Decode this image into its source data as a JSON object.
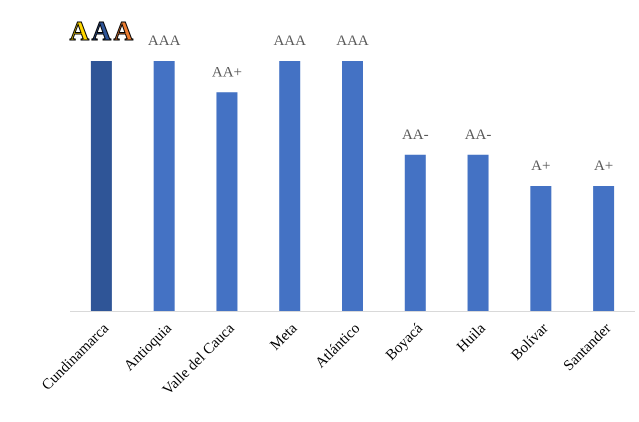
{
  "chart_data": {
    "type": "bar",
    "categories": [
      "Cundinamarca",
      "Antioquia",
      "Valle del Cauca",
      "Meta",
      "Atlántico",
      "Boyacá",
      "Huila",
      "Bolívar",
      "Santander"
    ],
    "values": [
      8,
      8,
      7,
      8,
      8,
      5,
      5,
      4,
      4
    ],
    "data_labels": [
      "AAA",
      "AAA",
      "AA+",
      "AAA",
      "AAA",
      "AA-",
      "AA-",
      "A+",
      "A+"
    ],
    "highlight_index": 0,
    "highlight_letter_colors": [
      "#FFD700",
      "#2F5597",
      "#ED7D31"
    ],
    "ylim": [
      0,
      8
    ],
    "grid": false,
    "legend": "none",
    "xlabel": "",
    "ylabel": "",
    "title": "",
    "colors": {
      "bar": "#4472C4",
      "bar_highlight": "#2F5597",
      "axis": "#D9D9D9",
      "data_label": "#595959",
      "highlight_outline": "#000000"
    }
  }
}
